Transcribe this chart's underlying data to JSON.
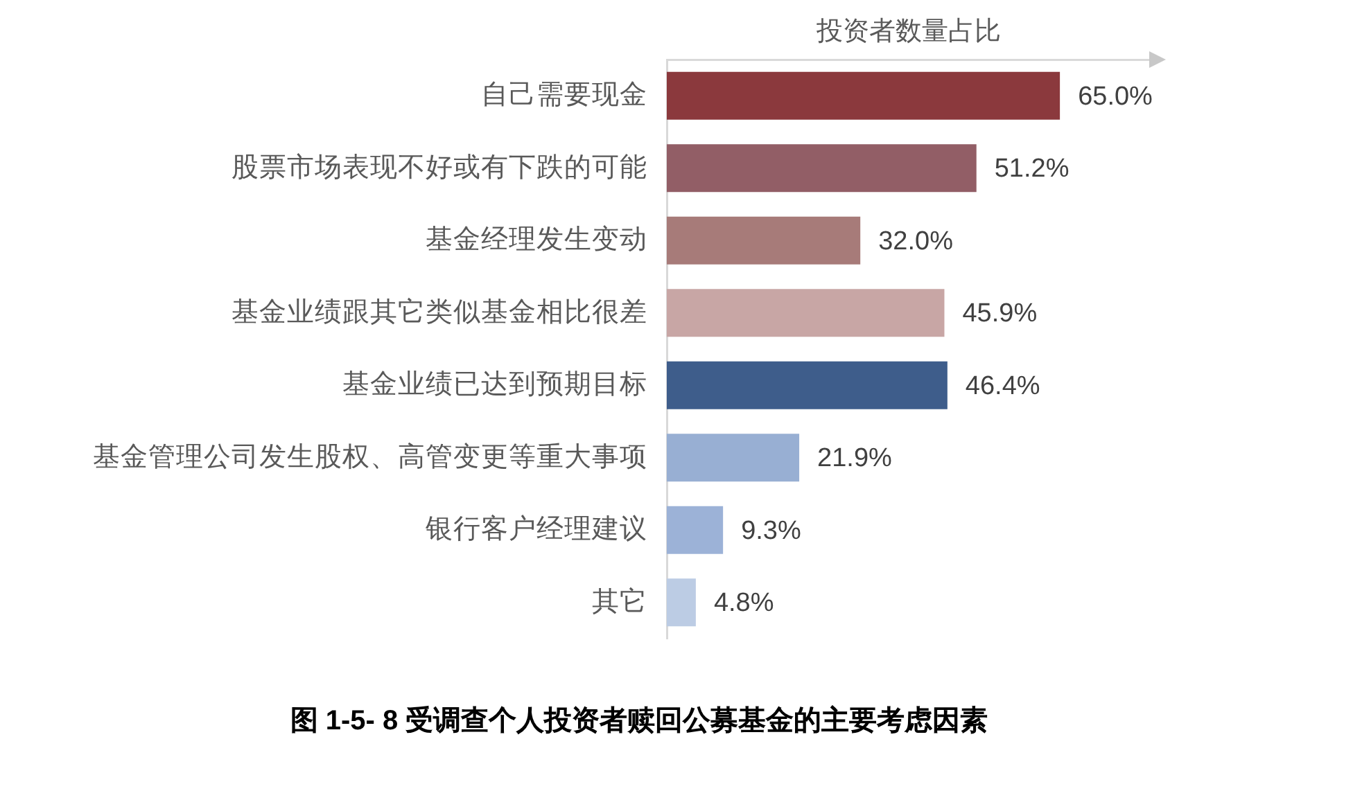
{
  "chart_data": {
    "type": "bar",
    "orientation": "horizontal",
    "title": "图 1-5- 8 受调查个人投资者赎回公募基金的主要考虑因素",
    "xlabel": "投资者数量占比",
    "categories": [
      "自己需要现金",
      "股票市场表现不好或有下跌的可能",
      "基金经理发生变动",
      "基金业绩跟其它类似基金相比很差",
      "基金业绩已达到预期目标",
      "基金管理公司发生股权、高管变更等重大事项",
      "银行客户经理建议",
      "其它"
    ],
    "values": [
      65.0,
      51.2,
      32.0,
      45.9,
      46.4,
      21.9,
      9.3,
      4.8
    ],
    "colors": [
      "#8b393d",
      "#925e66",
      "#a77b79",
      "#c8a6a5",
      "#3e5d8b",
      "#98afd3",
      "#9cb2d7",
      "#bccce4"
    ],
    "value_labels": [
      "65.0%",
      "51.2%",
      "32.0%",
      "45.9%",
      "46.4%",
      "21.9%",
      "9.3%",
      "4.8%"
    ],
    "xlim": [
      0,
      80
    ],
    "tick_labels": "y"
  }
}
